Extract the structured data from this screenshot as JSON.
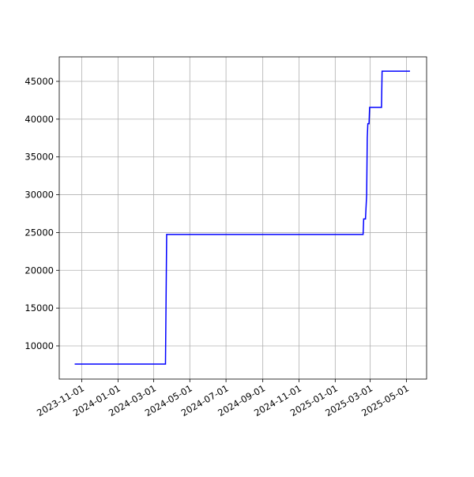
{
  "chart_data": {
    "type": "line",
    "x": [
      "2023-10-20",
      "2024-03-21",
      "2024-03-23",
      "2025-02-17",
      "2025-02-18",
      "2025-02-21",
      "2025-02-23",
      "2025-02-24",
      "2025-02-25",
      "2025-02-27",
      "2025-02-28",
      "2025-03-20",
      "2025-03-21",
      "2025-05-07"
    ],
    "series": [
      {
        "color": "#0000ff",
        "values": [
          7600,
          7600,
          24750,
          24750,
          26800,
          26800,
          30000,
          37500,
          39400,
          39400,
          41550,
          41550,
          46350,
          46350
        ]
      }
    ],
    "xlim": [
      "2023-09-24",
      "2025-06-04"
    ],
    "xticks": [
      "2023-11-01",
      "2024-01-01",
      "2024-03-01",
      "2024-05-01",
      "2024-07-01",
      "2024-09-01",
      "2024-11-01",
      "2025-01-01",
      "2025-03-01",
      "2025-05-01"
    ],
    "ylim": [
      5610,
      48240
    ],
    "yticks": [
      10000,
      15000,
      20000,
      25000,
      30000,
      35000,
      40000,
      45000
    ],
    "grid": true
  }
}
